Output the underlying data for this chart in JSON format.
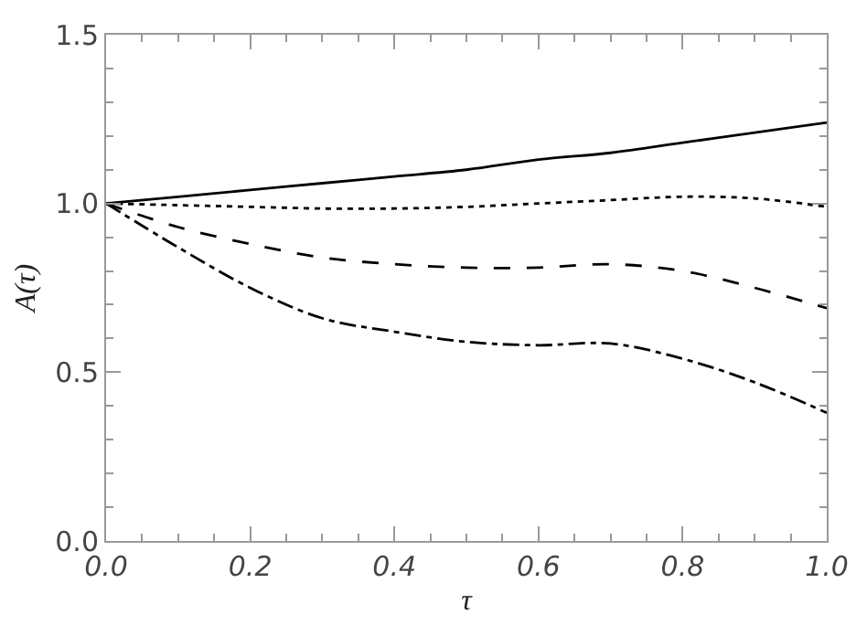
{
  "chart_data": {
    "type": "line",
    "xlabel": "τ",
    "ylabel": "A(τ)",
    "x": [
      0,
      0.1,
      0.2,
      0.3,
      0.4,
      0.5,
      0.6,
      0.7,
      0.8,
      0.9,
      1.0
    ],
    "series": [
      {
        "color": "#000000",
        "line_style": "solid",
        "values": [
          1.0,
          1.02,
          1.04,
          1.06,
          1.08,
          1.1,
          1.13,
          1.15,
          1.18,
          1.21,
          1.24
        ]
      },
      {
        "color": "#000000",
        "line_style": "dotted",
        "values": [
          1.0,
          0.995,
          0.99,
          0.985,
          0.985,
          0.99,
          1.0,
          1.01,
          1.02,
          1.015,
          0.99
        ]
      },
      {
        "color": "#000000",
        "line_style": "dashed",
        "values": [
          1.0,
          0.93,
          0.88,
          0.84,
          0.82,
          0.81,
          0.81,
          0.82,
          0.8,
          0.75,
          0.69
        ]
      },
      {
        "color": "#000000",
        "line_style": "dashdot",
        "values": [
          1.0,
          0.87,
          0.75,
          0.66,
          0.62,
          0.59,
          0.58,
          0.585,
          0.54,
          0.47,
          0.38
        ]
      }
    ],
    "xlim": [
      0,
      1.0
    ],
    "xticks": [
      {
        "value": 0,
        "label": "0.0"
      },
      0.2,
      0.4,
      0.6,
      0.8,
      {
        "value": 1,
        "label": "1.0"
      }
    ],
    "ylim": [
      0,
      1.5
    ],
    "yticks": [
      {
        "value": 0,
        "label": "0.0"
      },
      0.5,
      {
        "value": 1,
        "label": "1.0"
      },
      1.5
    ],
    "marker": "none"
  }
}
